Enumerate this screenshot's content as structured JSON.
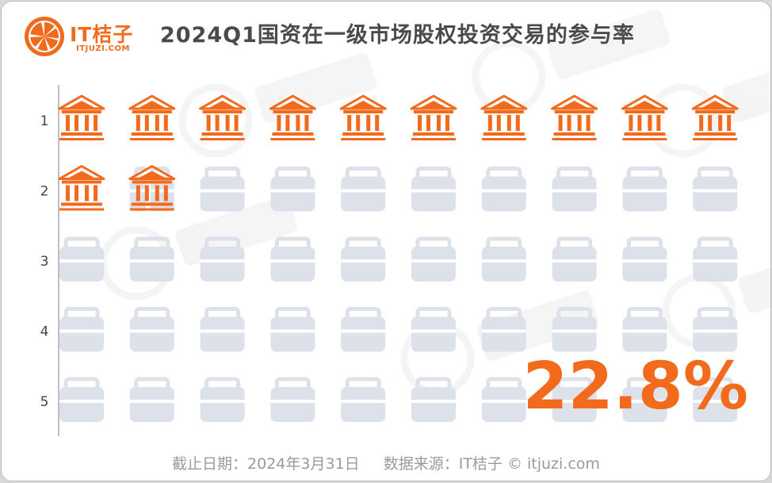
{
  "brand": {
    "name": "IT桔子",
    "domain": "ITJUZI.COM",
    "color": "#f26b1d"
  },
  "title": "2024Q1国资在一级市场股权投资交易的参与率",
  "chart_data": {
    "type": "pictograph",
    "rows": [
      "1",
      "2",
      "3",
      "4",
      "5"
    ],
    "columns": 10,
    "total_icons": 50,
    "highlighted_icons": 11.4,
    "value": 22.8,
    "value_label": "22.8%",
    "highlight_icon": "bank-building-icon",
    "base_icon": "briefcase-icon",
    "highlight_color": "#f26b1d",
    "base_color": "#dde1ea"
  },
  "footer": {
    "date": "截止日期：2024年3月31日",
    "source": "数据来源：IT桔子 © itjuzi.com"
  }
}
